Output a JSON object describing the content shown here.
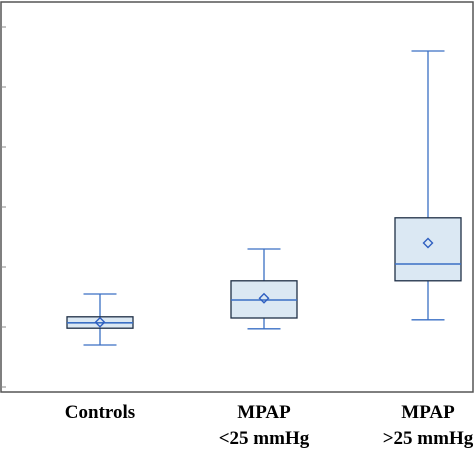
{
  "colors": {
    "frame": "#555555",
    "box_fill": "#dbe8f3",
    "box_edge": "#1f2f46",
    "median": "#3a6fc4",
    "whisker": "#3a6fc4",
    "mean_marker": "#2f5fc0",
    "tick": "#888888"
  },
  "chart_data": {
    "type": "boxplot",
    "title": "",
    "xlabel": "",
    "ylabel": "",
    "ylim": [
      0,
      6
    ],
    "y_ticks": [
      0,
      1,
      2,
      3,
      4,
      5,
      6
    ],
    "grid": false,
    "legend": "none",
    "categories": [
      {
        "label_lines": [
          "Controls"
        ]
      },
      {
        "label_lines": [
          "MPAP",
          "<25 mmHg"
        ]
      },
      {
        "label_lines": [
          "MPAP",
          ">25 mmHg"
        ]
      }
    ],
    "boxes": [
      {
        "whisker_low": 0.7,
        "q1": 0.98,
        "median": 1.07,
        "q3": 1.17,
        "whisker_high": 1.55,
        "mean": 1.08
      },
      {
        "whisker_low": 0.97,
        "q1": 1.15,
        "median": 1.45,
        "q3": 1.77,
        "whisker_high": 2.3,
        "mean": 1.48
      },
      {
        "whisker_low": 1.12,
        "q1": 1.77,
        "median": 2.05,
        "q3": 2.82,
        "whisker_high": 5.6,
        "mean": 2.4
      }
    ]
  }
}
